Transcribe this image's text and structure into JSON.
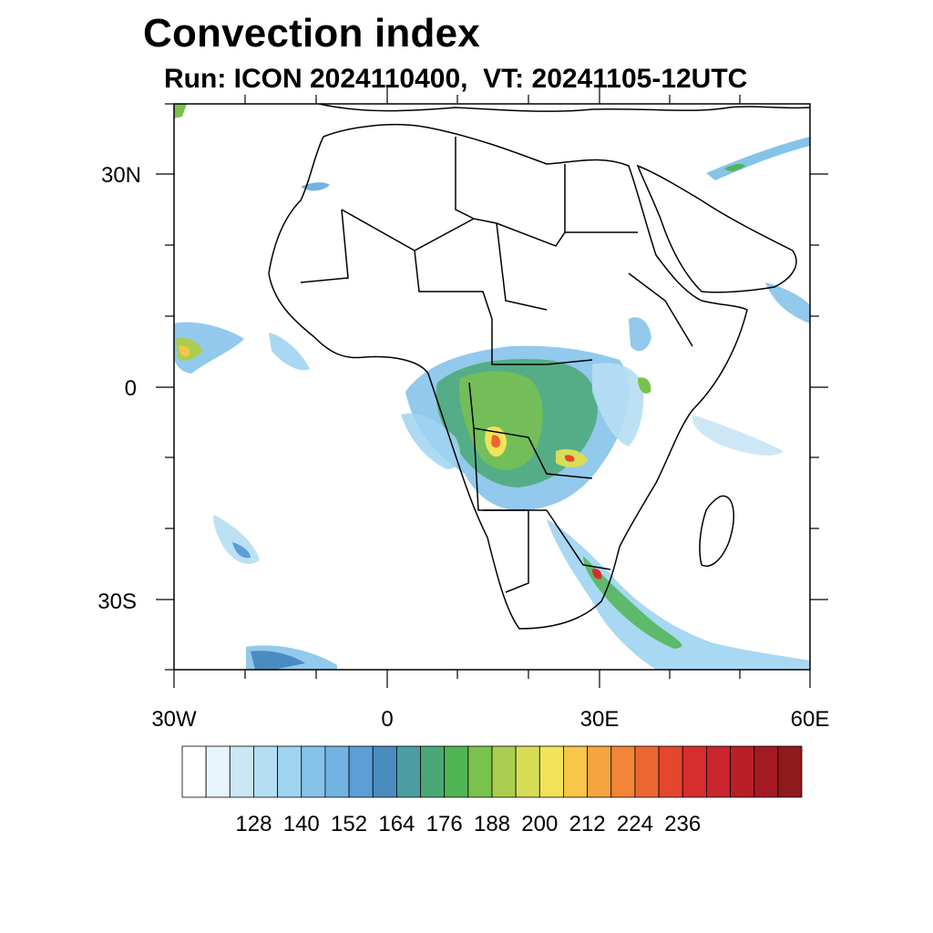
{
  "title": "Convection index",
  "subtitle": "Run: ICON 2024110400,  VT: 20241105-12UTC",
  "axes": {
    "lat_labels": [
      "30N",
      "0",
      "30S"
    ],
    "lon_labels": [
      "30W",
      "0",
      "30E",
      "60E"
    ]
  },
  "colorbar": {
    "colors": [
      "#ffffff",
      "#e8f4fb",
      "#cbe6f5",
      "#b6def3",
      "#9fd4f1",
      "#86c3ea",
      "#72b3e2",
      "#5b9fd6",
      "#4a8cc0",
      "#4a9ea2",
      "#4aa876",
      "#4fb552",
      "#7ac24e",
      "#aacd4f",
      "#d8dd56",
      "#f2e35a",
      "#f7c64a",
      "#f6a43f",
      "#f28537",
      "#ec6631",
      "#e4472d",
      "#d82d2d",
      "#c9252c",
      "#b81f27",
      "#a51a22",
      "#8f1a1c"
    ],
    "labels": [
      "128",
      "140",
      "152",
      "164",
      "176",
      "188",
      "200",
      "212",
      "224",
      "236"
    ]
  }
}
